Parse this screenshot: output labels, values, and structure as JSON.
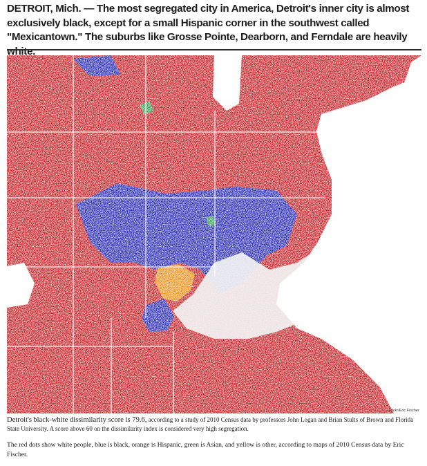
{
  "article": {
    "headline": "DETROIT, Mich. — The most segregated city in America, Detroit's inner city is almost exclusively black, except for a small Hispanic corner in the southwest called \"Mexicantown.\" The suburbs like Grosse Pointe, Dearborn, and Ferndale are heavily white.",
    "photo_credit": "Flickr/Eric Fischer",
    "caption_intro": "Detroit's",
    "caption_highlight": "black-white dissimilarity score is 79.6,",
    "caption_rest": "according to a study of 2010 Census data by professors John Logan and Brian Stults of Brown and Florida State University. A score above 60 on the dissimilarity index is considered very high segregation.",
    "caption_2": "The red dots show white people, blue is black, orange is Hispanic, green is Asian, and yellow is other, according to maps of 2010 Census data by Eric Fischer."
  },
  "map": {
    "colors": {
      "white": "#c2151b",
      "black": "#1c1fb0",
      "hispanic": "#e88a0c",
      "asian": "#2a9a4a",
      "other": "#e6c21a",
      "water": "#ffffff"
    }
  }
}
